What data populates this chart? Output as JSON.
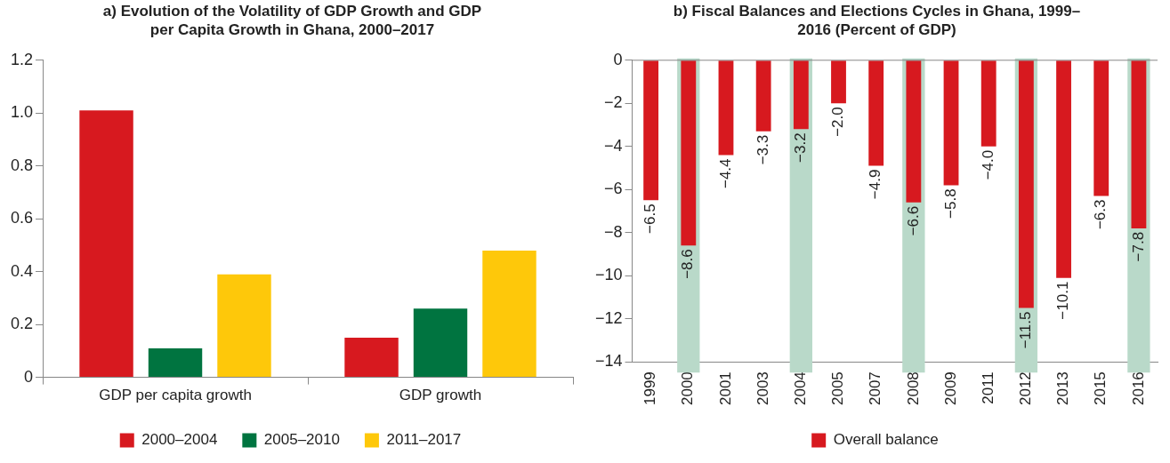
{
  "chart_data": [
    {
      "type": "bar",
      "title": "a) Evolution of the Volatility of GDP Growth and GDP per Capita Growth in Ghana, 2000–2017",
      "categories": [
        "GDP per capita growth",
        "GDP growth"
      ],
      "series": [
        {
          "name": "2000–2004",
          "color": "#d7191f",
          "values": [
            1.01,
            0.15
          ]
        },
        {
          "name": "2005–2010",
          "color": "#007440",
          "values": [
            0.11,
            0.26
          ]
        },
        {
          "name": "2011–2017",
          "color": "#fec80a",
          "values": [
            0.39,
            0.48
          ]
        }
      ],
      "ylim": [
        0,
        1.2
      ],
      "yticks": [
        0,
        0.2,
        0.4,
        0.6,
        0.8,
        {
          "value": 1,
          "label": "1.0"
        },
        1.2
      ],
      "legend": "bottom"
    },
    {
      "type": "bar",
      "title": "b) Fiscal Balances and Elections Cycles in Ghana, 1999–2016 (Percent of GDP)",
      "categories": [
        "1999",
        "2000",
        "2001",
        "2003",
        "2004",
        "2005",
        "2007",
        "2008",
        "2009",
        "2011",
        "2012",
        "2013",
        "2015",
        "2016"
      ],
      "series": [
        {
          "name": "Overall balance",
          "color": "#d7191f",
          "values": [
            -6.5,
            -8.6,
            -4.4,
            -3.3,
            -3.2,
            -2.0,
            -4.9,
            -6.6,
            -5.8,
            -4.0,
            -11.5,
            -10.1,
            -6.3,
            -7.8
          ],
          "value_labels": [
            "−6.5",
            "−8.6",
            "−4.4",
            "−3.3",
            "−3.2",
            "−2.0",
            "−4.9",
            "−6.6",
            "−5.8",
            "−4.0",
            "−11.5",
            "−10.1",
            "−6.3",
            "−7.8"
          ]
        }
      ],
      "ylim": [
        -14,
        0
      ],
      "yticks": [
        {
          "value": -14,
          "label": "−14"
        },
        {
          "value": -12,
          "label": "−12"
        },
        {
          "value": -10,
          "label": "−10"
        },
        {
          "value": -8,
          "label": "−8"
        },
        {
          "value": -6,
          "label": "−6"
        },
        {
          "value": -4,
          "label": "−4"
        },
        {
          "value": -2,
          "label": "−2"
        },
        0
      ],
      "bands": [
        {
          "axis": "x",
          "from": "2000",
          "to": "2000",
          "color": "#b9d9c9"
        },
        {
          "axis": "x",
          "from": "2004",
          "to": "2004",
          "color": "#b9d9c9"
        },
        {
          "axis": "x",
          "from": "2008",
          "to": "2008",
          "color": "#b9d9c9"
        },
        {
          "axis": "x",
          "from": "2012",
          "to": "2012",
          "color": "#b9d9c9"
        },
        {
          "axis": "x",
          "from": "2016",
          "to": "2016",
          "color": "#b9d9c9"
        }
      ],
      "legend": "bottom"
    }
  ]
}
